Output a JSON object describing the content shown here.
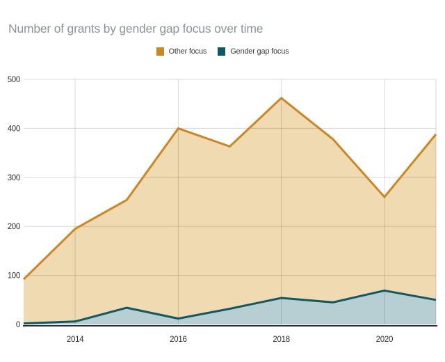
{
  "title": "Number of grants by gender gap focus over time",
  "legend_items": [
    {
      "label": "Other focus",
      "color": "#ce861e"
    },
    {
      "label": "Gender gap focus",
      "color": "#0f5964"
    }
  ],
  "chart_data": {
    "type": "area",
    "title": "Number of grants by gender gap focus over time",
    "xlabel": "",
    "ylabel": "",
    "x": [
      2013,
      2014,
      2015,
      2016,
      2017,
      2018,
      2019,
      2020,
      2021
    ],
    "series": [
      {
        "name": "Other focus",
        "values": [
          92,
          195,
          254,
          400,
          363,
          462,
          378,
          260,
          388
        ],
        "line_color": "#ce861e",
        "fill_color": "#efdab2"
      },
      {
        "name": "Gender gap focus",
        "values": [
          2,
          6,
          34,
          12,
          32,
          54,
          45,
          69,
          50
        ],
        "line_color": "#0f5964",
        "fill_color": "#b7ced3"
      }
    ],
    "ylim": [
      0,
      500
    ],
    "yticks": [
      0,
      100,
      200,
      300,
      400,
      500
    ],
    "xticks": [
      2014,
      2016,
      2018,
      2020
    ],
    "grid": "on",
    "legend_position": "top-center",
    "colors": {
      "gridline": "rgba(0,0,0,0.15)",
      "axis_line": "#2f2f2f",
      "tick_label": "#2e2e2e"
    }
  }
}
